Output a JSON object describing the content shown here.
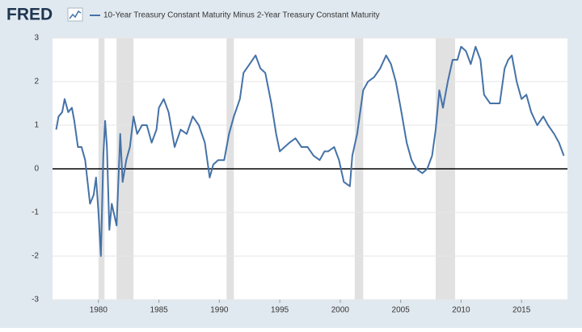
{
  "chart_data": {
    "type": "line",
    "brand": "FRED",
    "x": [
      1976.5,
      1976.7,
      1977.0,
      1977.2,
      1977.5,
      1977.8,
      1978.0,
      1978.3,
      1978.6,
      1978.9,
      1979.1,
      1979.3,
      1979.6,
      1979.8,
      1980.0,
      1980.2,
      1980.4,
      1980.55,
      1980.7,
      1980.9,
      1981.1,
      1981.5,
      1981.8,
      1982.0,
      1982.3,
      1982.6,
      1982.9,
      1983.2,
      1983.6,
      1984.0,
      1984.4,
      1984.8,
      1985.0,
      1985.4,
      1985.8,
      1986.3,
      1986.8,
      1987.3,
      1987.8,
      1988.3,
      1988.8,
      1989.2,
      1989.5,
      1989.9,
      1990.4,
      1990.8,
      1991.2,
      1991.7,
      1992.0,
      1992.5,
      1993.0,
      1993.4,
      1993.8,
      1994.3,
      1994.7,
      1995.0,
      1995.4,
      1995.8,
      1996.3,
      1996.8,
      1997.3,
      1997.8,
      1998.3,
      1998.7,
      1999.0,
      1999.5,
      1999.9,
      2000.3,
      2000.8,
      2001.0,
      2001.4,
      2001.9,
      2002.3,
      2002.8,
      2003.3,
      2003.8,
      2004.2,
      2004.6,
      2005.0,
      2005.5,
      2005.9,
      2006.3,
      2006.8,
      2007.2,
      2007.6,
      2007.9,
      2008.2,
      2008.5,
      2008.9,
      2009.3,
      2009.7,
      2010.0,
      2010.4,
      2010.8,
      2011.2,
      2011.6,
      2011.9,
      2012.4,
      2012.8,
      2013.2,
      2013.6,
      2013.9,
      2014.2,
      2014.6,
      2015.0,
      2015.4,
      2015.8,
      2016.3,
      2016.8,
      2017.2,
      2017.7,
      2018.1,
      2018.5
    ],
    "series": [
      {
        "name": "10-Year Treasury Constant Maturity Minus 2-Year Treasury Constant Maturity",
        "color": "#4572a7",
        "values": [
          0.9,
          1.2,
          1.3,
          1.6,
          1.3,
          1.4,
          1.1,
          0.5,
          0.5,
          0.2,
          -0.3,
          -0.8,
          -0.6,
          -0.2,
          -1.0,
          -2.0,
          0.3,
          1.1,
          0.5,
          -1.4,
          -0.8,
          -1.3,
          0.8,
          -0.3,
          0.2,
          0.5,
          1.2,
          0.8,
          1.0,
          1.0,
          0.6,
          0.9,
          1.4,
          1.6,
          1.3,
          0.5,
          0.9,
          0.8,
          1.2,
          1.0,
          0.6,
          -0.2,
          0.1,
          0.2,
          0.2,
          0.8,
          1.2,
          1.6,
          2.2,
          2.4,
          2.6,
          2.3,
          2.2,
          1.5,
          0.8,
          0.4,
          0.5,
          0.6,
          0.7,
          0.5,
          0.5,
          0.3,
          0.2,
          0.4,
          0.4,
          0.5,
          0.2,
          -0.3,
          -0.4,
          0.3,
          0.8,
          1.8,
          2.0,
          2.1,
          2.3,
          2.6,
          2.4,
          2.0,
          1.4,
          0.6,
          0.2,
          0.0,
          -0.1,
          0.0,
          0.3,
          0.9,
          1.8,
          1.4,
          2.0,
          2.5,
          2.5,
          2.8,
          2.7,
          2.4,
          2.8,
          2.5,
          1.7,
          1.5,
          1.5,
          1.5,
          2.3,
          2.5,
          2.6,
          2.0,
          1.6,
          1.7,
          1.3,
          1.0,
          1.2,
          1.0,
          0.8,
          0.6,
          0.3
        ]
      }
    ],
    "recessions": [
      [
        1980.0,
        1980.5
      ],
      [
        1981.5,
        1982.9
      ],
      [
        1990.6,
        1991.2
      ],
      [
        2001.2,
        2001.9
      ],
      [
        2007.9,
        2009.5
      ]
    ],
    "xlim": [
      1976.2,
      2018.8
    ],
    "xticks": [
      1980,
      1985,
      1990,
      1995,
      2000,
      2005,
      2010,
      2015
    ],
    "ylim": [
      -3,
      3
    ],
    "yticks": [
      3,
      2,
      1,
      0,
      -1,
      -2,
      -3
    ],
    "grid": true
  }
}
